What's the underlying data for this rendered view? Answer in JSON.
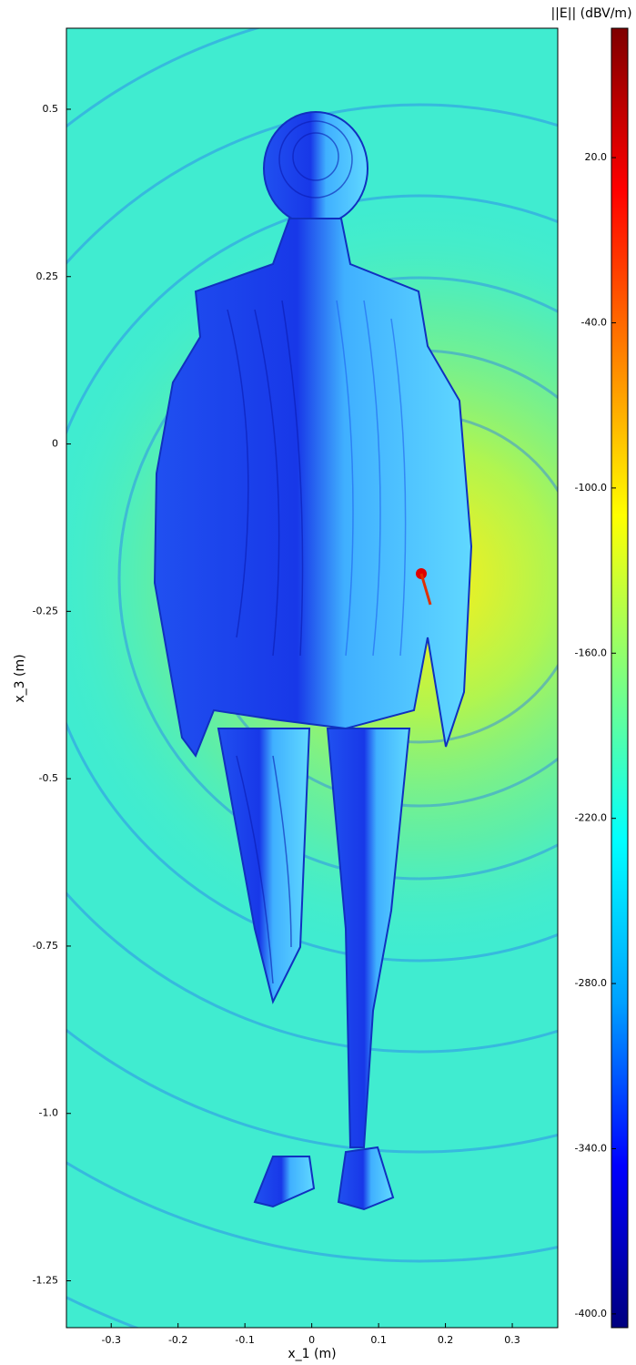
{
  "chart_data": {
    "type": "heatmap",
    "xlabel": "x_1 (m)",
    "ylabel": "x_3 (m)",
    "colorbar_label": "||E|| (dBV/m)",
    "xlim": [
      -0.367,
      0.368
    ],
    "xticks": [
      -0.3,
      -0.2,
      -0.1,
      0,
      0.1,
      0.2,
      0.3
    ],
    "ylim": [
      -1.32,
      0.621
    ],
    "yticks": [
      0.5,
      0.25,
      0,
      -0.25,
      -0.5,
      -0.75,
      {
        "value": -1,
        "label": "-1.0"
      },
      -1.25
    ],
    "clim": [
      -405,
      67
    ],
    "cticks": [
      {
        "value": 20,
        "label": "20.0"
      },
      {
        "value": -40,
        "label": "-40.0"
      },
      {
        "value": -100,
        "label": "-100.0"
      },
      {
        "value": -160,
        "label": "-160.0"
      },
      {
        "value": -220,
        "label": "-220.0"
      },
      {
        "value": -280,
        "label": "-280.0"
      },
      {
        "value": -340,
        "label": "-340.0"
      },
      {
        "value": -400,
        "label": "-400.0"
      }
    ],
    "colormap": [
      "#00007f",
      "#0000ff",
      "#00a0ff",
      "#00ffff",
      "#7fff7f",
      "#ffff00",
      "#ff8000",
      "#ff0000",
      "#7f0000"
    ]
  }
}
